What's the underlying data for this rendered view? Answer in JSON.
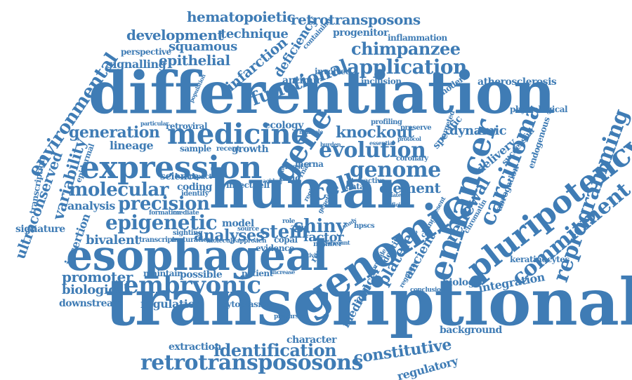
{
  "cloud": {
    "color": "#3f7cb5",
    "words": [
      "differentiation",
      "transcriptional",
      "human",
      "esophageal",
      "genomic",
      "enhancer",
      "expression",
      "pluripotency",
      "medicine",
      "carcinoma",
      "embryonic",
      "gene",
      "reprogramming",
      "commitment",
      "retrotransposons",
      "retrotranspososons",
      "evolution",
      "genome",
      "epigenetic",
      "precision",
      "molecular",
      "identification",
      "functional",
      "application",
      "knockout",
      "environmental",
      "ultraconserved",
      "generation",
      "cell",
      "chimpanzee",
      "stem",
      "shiny",
      "renewal",
      "analyses",
      "platelet",
      "constitutive",
      "variability",
      "regulatory",
      "promoter",
      "biological",
      "regulation",
      "element",
      "hematopoietic",
      "development",
      "technique",
      "deficiency",
      "infarction",
      "squamous",
      "epithelial",
      "signalling",
      "progenitor",
      "dynamic",
      "delivery",
      "ancient",
      "integration",
      "factor",
      "bivalent",
      "analysis",
      "lineage",
      "insertion",
      "signature",
      "model",
      "coding",
      "science",
      "sample",
      "antimir",
      "involved",
      "inclusion",
      "atherosclerosis",
      "modern",
      "inflammation",
      "containing",
      "perspective",
      "ecology",
      "growth",
      "medical",
      "cancer",
      "possible",
      "maintain",
      "downstream",
      "extraction",
      "character",
      "background",
      "abrogation",
      "endogenous",
      "successful",
      "specific",
      "identity",
      "biology",
      "keratinocytes",
      "physiological",
      "cytoplasmic",
      "patient",
      "lncrna",
      "drug",
      "insect",
      "self",
      "data",
      "active",
      "result",
      "evidence",
      "copal",
      "maturation",
      "transcript",
      "sighting",
      "impact",
      "identify",
      "retroviral",
      "recent",
      "epidermal",
      "transcription",
      "coronary",
      "targeted",
      "profiling",
      "preserve",
      "conclusion",
      "present",
      "chromatin",
      "regulator",
      "change",
      "number",
      "hpscs",
      "source",
      "mediate",
      "formation",
      "molecule",
      "approach",
      "zinc",
      "most",
      "rnas",
      "region",
      "genetic",
      "account",
      "role",
      "study",
      "deficient",
      "related",
      "essential",
      "burden",
      "multiple",
      "protocol",
      "particular",
      "population",
      "provide",
      "activity",
      "increase",
      "precursor",
      "among",
      "acid"
    ]
  }
}
